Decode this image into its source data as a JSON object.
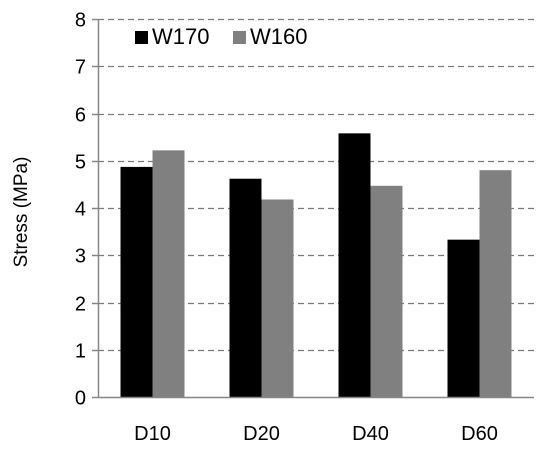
{
  "chart_data": {
    "type": "bar",
    "title": "",
    "xlabel": "",
    "ylabel": "Stress (MPa)",
    "ylim": [
      0,
      8
    ],
    "yticks": [
      0,
      1,
      2,
      3,
      4,
      5,
      6,
      7,
      8
    ],
    "grid": true,
    "legend_position": "top-left",
    "categories": [
      "D10",
      "D20",
      "D40",
      "D60"
    ],
    "series": [
      {
        "name": "W170",
        "color": "#000000",
        "values": [
          4.87,
          4.62,
          5.58,
          3.33
        ]
      },
      {
        "name": "W160",
        "color": "#808080",
        "values": [
          5.22,
          4.18,
          4.47,
          4.8
        ]
      }
    ]
  }
}
